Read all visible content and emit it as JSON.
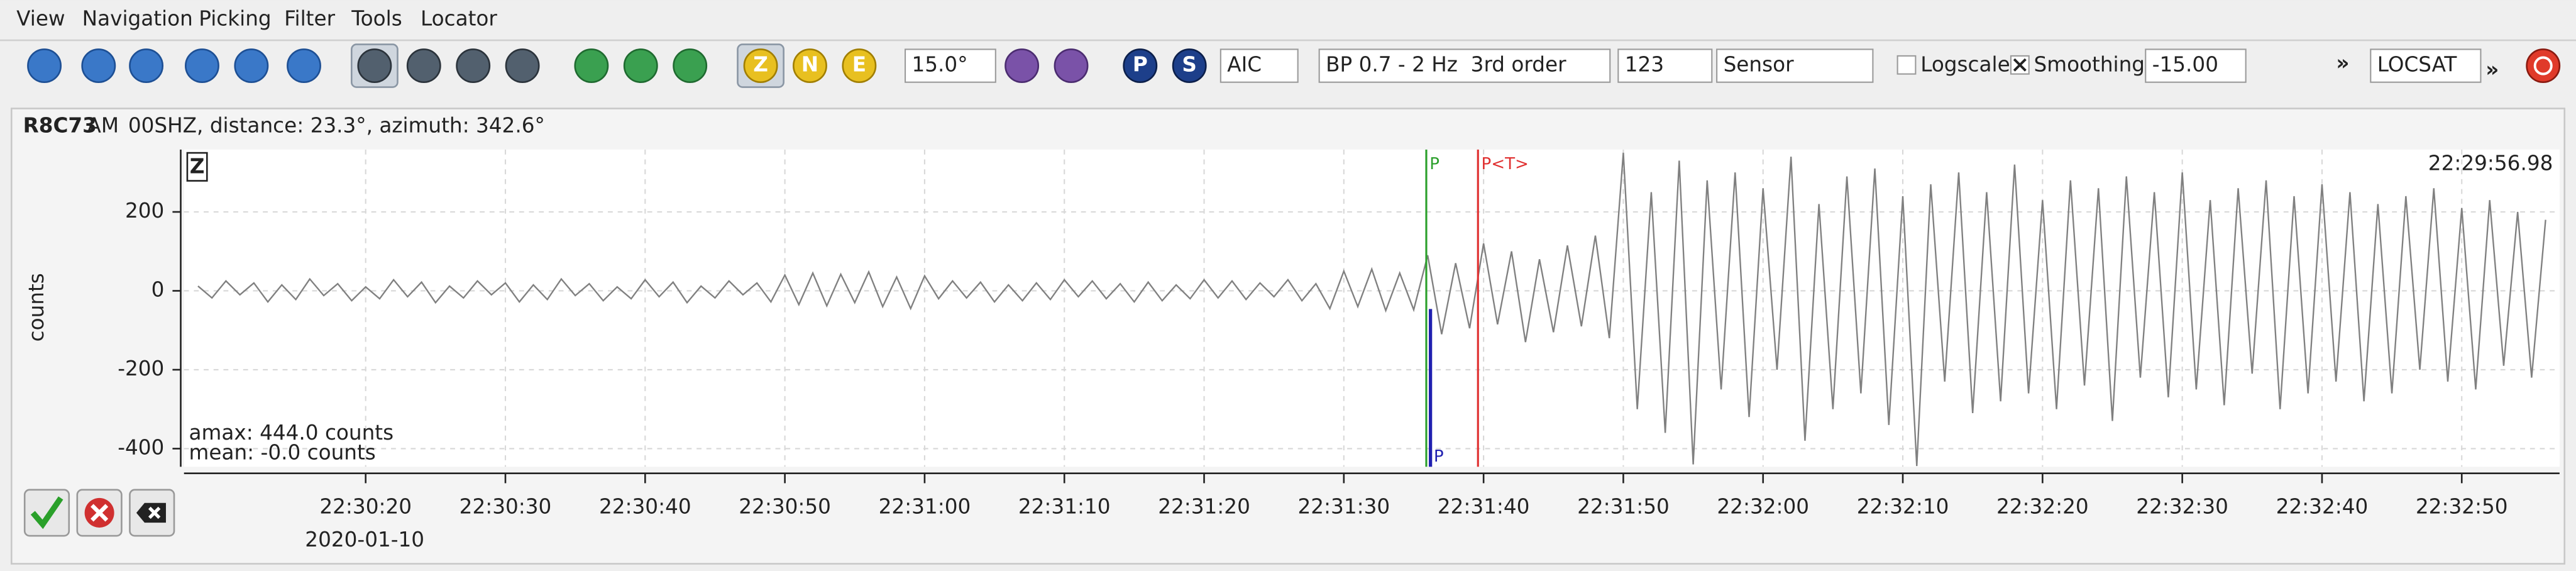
{
  "menu": [
    "View",
    "Navigation",
    "Picking",
    "Filter",
    "Tools",
    "Locator"
  ],
  "toolbar": {
    "angle": "15.0°",
    "picker": "AIC",
    "filter": "BP 0.7 - 2 Hz  3rd order",
    "components": "123",
    "unit": "Sensor",
    "logscale": "Logscale",
    "smoothing": "Smoothing",
    "smoothing_value": "-15.00",
    "more": "»",
    "locator": "LOCSAT",
    "component_buttons": [
      "Z",
      "N",
      "E"
    ],
    "phase_buttons": [
      "P",
      "S"
    ]
  },
  "trace": {
    "station": "R8C73",
    "network": "AM",
    "info": "00SHZ, distance: 23.3°, azimuth: 342.6°",
    "component": "Z",
    "time": "22:29:56.98",
    "amax": "amax: 444.0 counts",
    "mean": "mean: -0.0 counts",
    "date": "2020-01-10"
  },
  "chart_data": {
    "type": "line",
    "y_label": "counts",
    "color": "#808080",
    "grid": true,
    "x": [
      81008,
      81009,
      81010,
      81011,
      81012,
      81013,
      81014,
      81015,
      81016,
      81017,
      81018,
      81019,
      81020,
      81021,
      81022,
      81023,
      81024,
      81025,
      81026,
      81027,
      81028,
      81029,
      81030,
      81031,
      81032,
      81033,
      81034,
      81035,
      81036,
      81037,
      81038,
      81039,
      81040,
      81041,
      81042,
      81043,
      81044,
      81045,
      81046,
      81047,
      81048,
      81049,
      81050,
      81051,
      81052,
      81053,
      81054,
      81055,
      81056,
      81057,
      81058,
      81059,
      81060,
      81061,
      81062,
      81063,
      81064,
      81065,
      81066,
      81067,
      81068,
      81069,
      81070,
      81071,
      81072,
      81073,
      81074,
      81075,
      81076,
      81077,
      81078,
      81079,
      81080,
      81081,
      81082,
      81083,
      81084,
      81085,
      81086,
      81087,
      81088,
      81089,
      81090,
      81091,
      81092,
      81093,
      81094,
      81095,
      81096,
      81097,
      81098,
      81099,
      81100,
      81101,
      81102,
      81103,
      81104,
      81105,
      81106,
      81107,
      81108,
      81109,
      81110,
      81111,
      81112,
      81113,
      81114,
      81115,
      81116,
      81117,
      81118,
      81119,
      81120,
      81121,
      81122,
      81123,
      81124,
      81125,
      81126,
      81127,
      81128,
      81129,
      81130,
      81131,
      81132,
      81133,
      81134,
      81135,
      81136,
      81137,
      81138,
      81139,
      81140,
      81141,
      81142,
      81143,
      81144,
      81145,
      81146,
      81147,
      81148,
      81149,
      81150,
      81151,
      81152,
      81153,
      81154,
      81155,
      81156,
      81157,
      81158,
      81159,
      81160,
      81161,
      81162,
      81163,
      81164,
      81165,
      81166,
      81167,
      81168,
      81169,
      81170,
      81171,
      81172,
      81173,
      81174,
      81175,
      81176
    ],
    "values": [
      12,
      -18,
      25,
      -10,
      20,
      -28,
      15,
      -22,
      30,
      -12,
      18,
      -25,
      10,
      -20,
      28,
      -15,
      22,
      -30,
      12,
      -18,
      25,
      -10,
      20,
      -28,
      15,
      -22,
      30,
      -12,
      18,
      -25,
      10,
      -20,
      28,
      -15,
      22,
      -30,
      12,
      -18,
      25,
      -10,
      20,
      -28,
      40,
      -35,
      45,
      -38,
      42,
      -30,
      48,
      -40,
      35,
      -45,
      38,
      -20,
      25,
      -18,
      22,
      -28,
      15,
      -25,
      20,
      -22,
      28,
      -15,
      25,
      -20,
      18,
      -28,
      22,
      -25,
      15,
      -20,
      28,
      -18,
      25,
      -22,
      20,
      -15,
      28,
      -25,
      18,
      -45,
      50,
      -40,
      55,
      -50,
      45,
      -48,
      90,
      -110,
      70,
      -95,
      120,
      -85,
      100,
      -130,
      80,
      -105,
      115,
      -90,
      140,
      -120,
      350,
      -300,
      250,
      -360,
      330,
      -440,
      280,
      -250,
      300,
      -320,
      260,
      -200,
      340,
      -380,
      220,
      -300,
      290,
      -260,
      310,
      -340,
      240,
      -444,
      270,
      -230,
      300,
      -310,
      250,
      -280,
      320,
      -260,
      230,
      -300,
      280,
      -240,
      260,
      -330,
      290,
      -220,
      250,
      -270,
      300,
      -250,
      230,
      -290,
      260,
      -210,
      280,
      -300,
      240,
      -260,
      270,
      -230,
      250,
      -280,
      220,
      -260,
      240,
      -200,
      260,
      -230,
      210,
      -250,
      230,
      -190,
      200,
      -220,
      180
    ],
    "xlim": [
      81007,
      81177
    ],
    "ylim": [
      -446,
      358
    ],
    "xticks": [
      {
        "value": 81020,
        "label": "22:30:20"
      },
      {
        "value": 81030,
        "label": "22:30:30"
      },
      {
        "value": 81040,
        "label": "22:30:40"
      },
      {
        "value": 81050,
        "label": "22:30:50"
      },
      {
        "value": 81060,
        "label": "22:31:00"
      },
      {
        "value": 81070,
        "label": "22:31:10"
      },
      {
        "value": 81080,
        "label": "22:31:20"
      },
      {
        "value": 81090,
        "label": "22:31:30"
      },
      {
        "value": 81100,
        "label": "22:31:40"
      },
      {
        "value": 81110,
        "label": "22:31:50"
      },
      {
        "value": 81120,
        "label": "22:32:00"
      },
      {
        "value": 81130,
        "label": "22:32:10"
      },
      {
        "value": 81140,
        "label": "22:32:20"
      },
      {
        "value": 81150,
        "label": "22:32:30"
      },
      {
        "value": 81160,
        "label": "22:32:40"
      },
      {
        "value": 81170,
        "label": "22:32:50"
      }
    ],
    "yticks": [
      -400,
      -200,
      0,
      200
    ],
    "picks": [
      {
        "label": "P",
        "x": 81095.9,
        "color": "#2ca02c"
      },
      {
        "label": "P<T>",
        "x": 81099.6,
        "color": "#e03030"
      },
      {
        "label": "P",
        "x": 81096.2,
        "color": "#2020b0"
      }
    ]
  }
}
